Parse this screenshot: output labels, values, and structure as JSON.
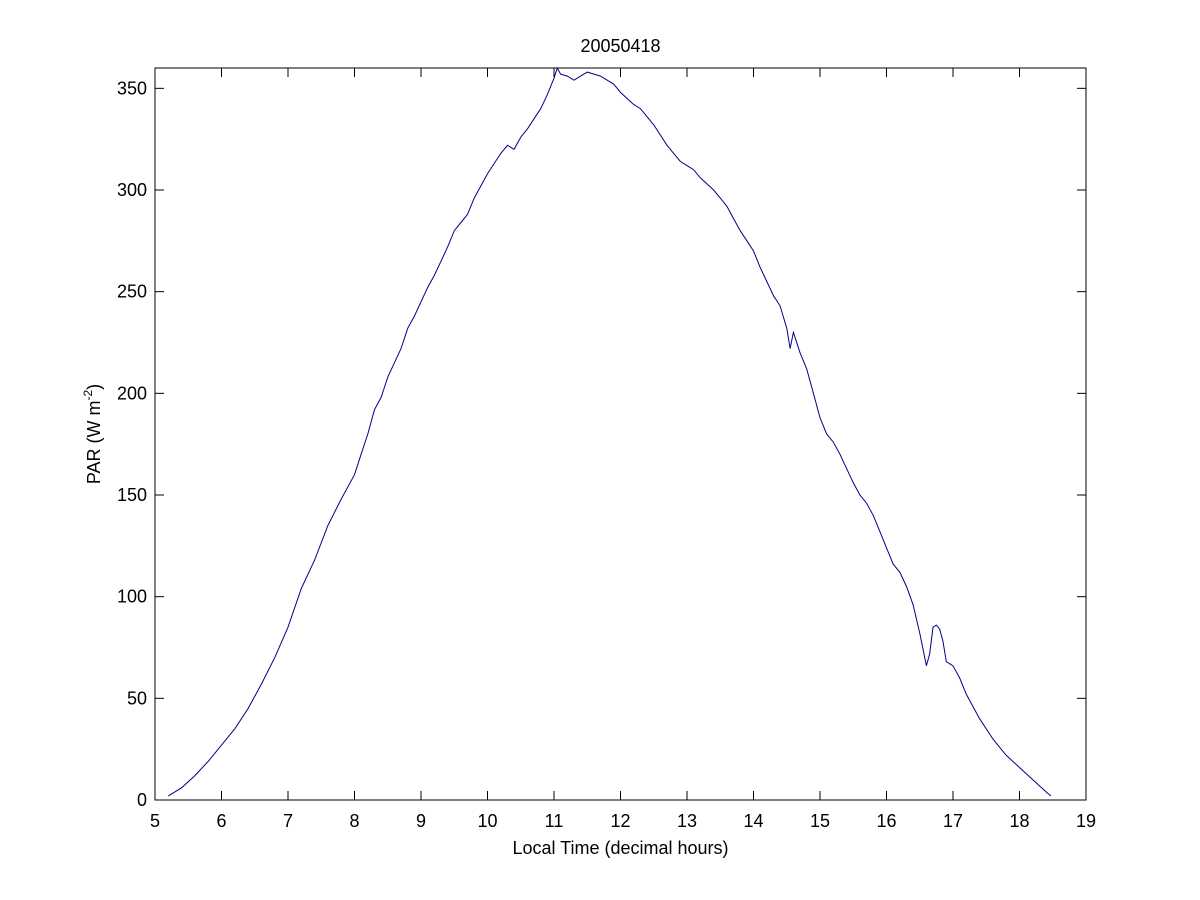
{
  "chart_data": {
    "type": "line",
    "title": "20050418",
    "xlabel": "Local Time (decimal hours)",
    "ylabel": {
      "prefix": "PAR (W m",
      "superscript": "-2",
      "suffix": ")"
    },
    "xlim": [
      5,
      19
    ],
    "ylim": [
      0,
      360
    ],
    "x_ticks": [
      5,
      6,
      7,
      8,
      9,
      10,
      11,
      12,
      13,
      14,
      15,
      16,
      17,
      18,
      19
    ],
    "y_ticks": [
      0,
      50,
      100,
      150,
      200,
      250,
      300,
      350
    ],
    "grid": false,
    "legend": "none",
    "series": [
      {
        "color": "#00008b",
        "x": [
          5.2,
          5.4,
          5.6,
          5.8,
          6.0,
          6.2,
          6.4,
          6.6,
          6.8,
          7.0,
          7.2,
          7.4,
          7.6,
          7.8,
          8.0,
          8.1,
          8.2,
          8.3,
          8.4,
          8.5,
          8.6,
          8.7,
          8.8,
          8.9,
          9.0,
          9.1,
          9.2,
          9.3,
          9.4,
          9.5,
          9.6,
          9.7,
          9.8,
          9.9,
          10.0,
          10.1,
          10.2,
          10.3,
          10.4,
          10.5,
          10.6,
          10.7,
          10.8,
          10.9,
          11.0,
          11.05,
          11.1,
          11.2,
          11.3,
          11.4,
          11.5,
          11.6,
          11.7,
          11.8,
          11.9,
          12.0,
          12.1,
          12.2,
          12.3,
          12.4,
          12.5,
          12.6,
          12.7,
          12.8,
          12.9,
          13.0,
          13.1,
          13.2,
          13.3,
          13.4,
          13.5,
          13.6,
          13.7,
          13.8,
          13.9,
          14.0,
          14.1,
          14.2,
          14.3,
          14.4,
          14.5,
          14.55,
          14.6,
          14.7,
          14.8,
          14.9,
          15.0,
          15.1,
          15.2,
          15.3,
          15.4,
          15.5,
          15.6,
          15.7,
          15.8,
          15.9,
          16.0,
          16.1,
          16.2,
          16.3,
          16.4,
          16.5,
          16.6,
          16.65,
          16.7,
          16.75,
          16.8,
          16.85,
          16.9,
          17.0,
          17.1,
          17.2,
          17.4,
          17.6,
          17.8,
          18.0,
          18.2,
          18.4,
          18.47
        ],
        "y": [
          2,
          6,
          12,
          19,
          27,
          35,
          45,
          57,
          70,
          85,
          104,
          118,
          135,
          148,
          160,
          170,
          180,
          192,
          198,
          208,
          215,
          222,
          232,
          238,
          245,
          252,
          258,
          265,
          272,
          280,
          284,
          288,
          296,
          302,
          308,
          313,
          318,
          322,
          320,
          326,
          330,
          335,
          340,
          347,
          355,
          360,
          357,
          356,
          354,
          356,
          358,
          357,
          356,
          354,
          352,
          348,
          345,
          342,
          340,
          336,
          332,
          327,
          322,
          318,
          314,
          312,
          310,
          306,
          303,
          300,
          296,
          292,
          286,
          280,
          275,
          270,
          262,
          255,
          248,
          243,
          232,
          222,
          230,
          220,
          212,
          200,
          188,
          180,
          176,
          170,
          163,
          156,
          150,
          146,
          140,
          132,
          124,
          116,
          112,
          105,
          96,
          82,
          66,
          72,
          85,
          86,
          84,
          78,
          68,
          66,
          60,
          52,
          40,
          30,
          22,
          16,
          10,
          4,
          2
        ]
      }
    ]
  }
}
